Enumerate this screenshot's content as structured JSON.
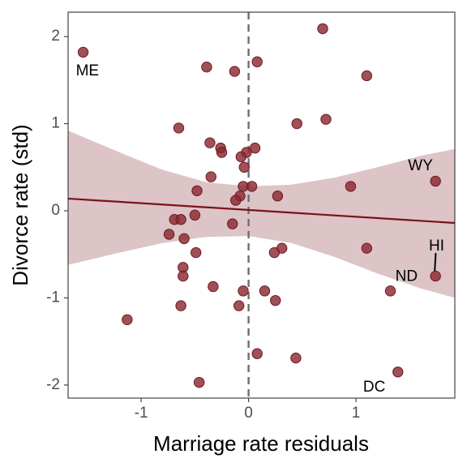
{
  "chart_data": {
    "type": "scatter",
    "xlabel": "Marriage rate residuals",
    "ylabel": "Divorce rate (std)",
    "xlim": [
      -1.68,
      1.92
    ],
    "ylim": [
      -2.15,
      2.28
    ],
    "x_ticks": [
      -1,
      0,
      1
    ],
    "y_ticks": [
      -2,
      -1,
      0,
      1,
      2
    ],
    "x_tick_labels": [
      "-1",
      "0",
      "1"
    ],
    "y_tick_labels": [
      "-2",
      "-1",
      "0",
      "1",
      "2"
    ],
    "grid": false,
    "vline_x": 0,
    "regression_line": {
      "x": [
        -1.68,
        1.92
      ],
      "y": [
        0.14,
        -0.14
      ]
    },
    "confidence_band": {
      "x": [
        -1.68,
        -1.2,
        -0.8,
        -0.4,
        0.0,
        0.4,
        0.8,
        1.2,
        1.6,
        1.92
      ],
      "upper": [
        0.92,
        0.67,
        0.47,
        0.33,
        0.28,
        0.3,
        0.38,
        0.5,
        0.63,
        0.71
      ],
      "lower": [
        -0.62,
        -0.48,
        -0.37,
        -0.3,
        -0.29,
        -0.37,
        -0.53,
        -0.72,
        -0.89,
        -1.0
      ]
    },
    "points": [
      {
        "x": -1.54,
        "y": 1.82,
        "label": "ME"
      },
      {
        "x": 0.69,
        "y": 2.09
      },
      {
        "x": -0.39,
        "y": 1.65
      },
      {
        "x": 0.08,
        "y": 1.71
      },
      {
        "x": -0.13,
        "y": 1.6
      },
      {
        "x": 1.1,
        "y": 1.55
      },
      {
        "x": 0.45,
        "y": 1.0
      },
      {
        "x": 0.72,
        "y": 1.05
      },
      {
        "x": -0.65,
        "y": 0.95
      },
      {
        "x": -0.36,
        "y": 0.78
      },
      {
        "x": -0.26,
        "y": 0.72
      },
      {
        "x": -0.25,
        "y": 0.67
      },
      {
        "x": 0.06,
        "y": 0.72
      },
      {
        "x": -0.02,
        "y": 0.67
      },
      {
        "x": -0.07,
        "y": 0.62
      },
      {
        "x": -0.04,
        "y": 0.5
      },
      {
        "x": -0.35,
        "y": 0.39
      },
      {
        "x": 1.74,
        "y": 0.34,
        "label": "WY"
      },
      {
        "x": 0.95,
        "y": 0.28
      },
      {
        "x": -0.05,
        "y": 0.28
      },
      {
        "x": 0.03,
        "y": 0.28
      },
      {
        "x": -0.48,
        "y": 0.23
      },
      {
        "x": 0.27,
        "y": 0.17
      },
      {
        "x": -0.08,
        "y": 0.17
      },
      {
        "x": -0.12,
        "y": 0.12
      },
      {
        "x": -0.5,
        "y": -0.05
      },
      {
        "x": -0.69,
        "y": -0.1
      },
      {
        "x": -0.63,
        "y": -0.1
      },
      {
        "x": -0.15,
        "y": -0.15
      },
      {
        "x": -0.74,
        "y": -0.27
      },
      {
        "x": -0.6,
        "y": -0.32
      },
      {
        "x": 0.31,
        "y": -0.43
      },
      {
        "x": 0.24,
        "y": -0.48
      },
      {
        "x": -0.49,
        "y": -0.48
      },
      {
        "x": 1.1,
        "y": -0.43
      },
      {
        "x": -0.61,
        "y": -0.65
      },
      {
        "x": 1.74,
        "y": -0.75,
        "label": "HI"
      },
      {
        "x": -0.61,
        "y": -0.75
      },
      {
        "x": -0.33,
        "y": -0.87
      },
      {
        "x": -0.05,
        "y": -0.92
      },
      {
        "x": 0.15,
        "y": -0.92
      },
      {
        "x": 1.32,
        "y": -0.92,
        "label": "ND"
      },
      {
        "x": 0.25,
        "y": -1.03
      },
      {
        "x": -0.63,
        "y": -1.09
      },
      {
        "x": -0.09,
        "y": -1.09
      },
      {
        "x": -1.13,
        "y": -1.25
      },
      {
        "x": 0.08,
        "y": -1.64
      },
      {
        "x": 0.44,
        "y": -1.69
      },
      {
        "x": 1.39,
        "y": -1.85,
        "label": "DC"
      },
      {
        "x": -0.46,
        "y": -1.97
      }
    ],
    "point_labels": [
      {
        "text": "ME",
        "x": -1.5,
        "y": 1.6
      },
      {
        "text": "WY",
        "x": 1.6,
        "y": 0.51
      },
      {
        "text": "HI",
        "x": 1.75,
        "y": -0.41
      },
      {
        "text": "ND",
        "x": 1.47,
        "y": -0.76
      },
      {
        "text": "DC",
        "x": 1.17,
        "y": -2.03
      }
    ],
    "colors": {
      "point_fill": "#8b2a31",
      "point_stroke": "#6e1a22",
      "line": "#7a1219",
      "band": "#dcc4c7",
      "vline": "#6e6e6e",
      "axis": "#333333",
      "text": "#000000"
    }
  }
}
